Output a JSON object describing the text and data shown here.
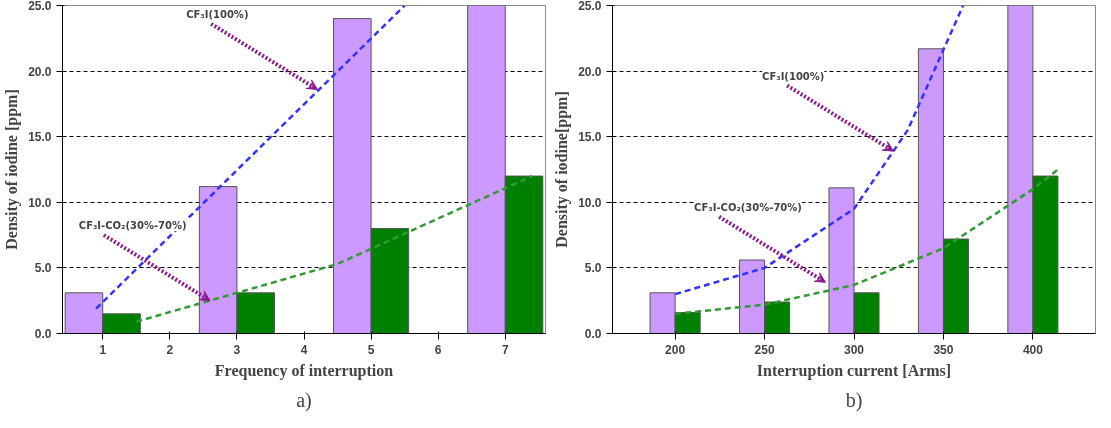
{
  "chart_data": [
    {
      "type": "bar",
      "xlabel": "Frequency of interruption",
      "ylabel": "Density of iodine [ppm]",
      "x": [
        1,
        3,
        5,
        7
      ],
      "xlim": [
        0.4,
        7.6
      ],
      "xticks": [
        1,
        2,
        3,
        4,
        5,
        6,
        7
      ],
      "ylim": [
        0,
        25
      ],
      "yticks": [
        {
          "value": 0,
          "label": "0.0"
        },
        {
          "value": 5,
          "label": "5.0"
        },
        {
          "value": 10,
          "label": "10.0"
        },
        {
          "value": 15,
          "label": "15.0"
        },
        {
          "value": 20,
          "label": "20.0"
        },
        {
          "value": 25,
          "label": "25.0"
        }
      ],
      "grid": "y",
      "series": [
        {
          "color": "#cc99ff",
          "values": [
            3.1,
            11.2,
            24.0,
            25.0
          ]
        },
        {
          "color": "#008000",
          "values": [
            1.5,
            3.1,
            8.0,
            12.0
          ]
        },
        {
          "type": "line",
          "line_style": "dashed",
          "color": "#3333ff",
          "x": [
            0.9,
            5.5
          ],
          "values": [
            1.9,
            25.0
          ]
        },
        {
          "type": "line",
          "line_style": "dashed",
          "color": "#339933",
          "x": [
            1.5,
            4.5,
            7.4
          ],
          "values": [
            0.9,
            5.3,
            12.0
          ]
        }
      ],
      "annotations": [
        {
          "text": "CF₃I(100%)",
          "x": 4.2,
          "y": 18.6
        },
        {
          "text": "CF₃I-CO₂(30%-70%)",
          "x": 2.6,
          "y": 2.5
        },
        "a)"
      ]
    },
    {
      "type": "bar",
      "xlabel": "Interruption current [Arms]",
      "ylabel": "Density of iodine[ppm]",
      "x": [
        200,
        250,
        300,
        350,
        400
      ],
      "xlim": [
        165,
        435
      ],
      "xticks": [
        200,
        250,
        300,
        350,
        400
      ],
      "ylim": [
        0,
        25
      ],
      "yticks": [
        {
          "value": 0,
          "label": "0.0"
        },
        {
          "value": 5,
          "label": "5.0"
        },
        {
          "value": 10,
          "label": "10.0"
        },
        {
          "value": 15,
          "label": "15.0"
        },
        {
          "value": 20,
          "label": "20.0"
        },
        {
          "value": 25,
          "label": "25.0"
        }
      ],
      "grid": "y",
      "series": [
        {
          "color": "#cc99ff",
          "values": [
            3.1,
            5.6,
            11.1,
            21.7,
            25.0
          ]
        },
        {
          "color": "#008000",
          "values": [
            1.6,
            2.4,
            3.1,
            7.2,
            12.0
          ]
        },
        {
          "type": "line",
          "line_style": "dashed",
          "color": "#3333ff",
          "x": [
            200,
            250,
            300,
            330,
            361
          ],
          "values": [
            3.0,
            5.0,
            9.5,
            15.5,
            25.0
          ]
        },
        {
          "type": "line",
          "line_style": "dashed",
          "color": "#339933",
          "x": [
            200,
            250,
            300,
            350,
            400,
            415
          ],
          "values": [
            1.5,
            2.2,
            3.7,
            6.5,
            11.0,
            12.6
          ]
        }
      ],
      "annotations": [
        {
          "text": "CF₃I(100%)",
          "x": 322,
          "y": 13.9
        },
        {
          "text": "CF₃I-CO₂(30%-70%)",
          "x": 284,
          "y": 3.9
        },
        "b)"
      ]
    }
  ]
}
